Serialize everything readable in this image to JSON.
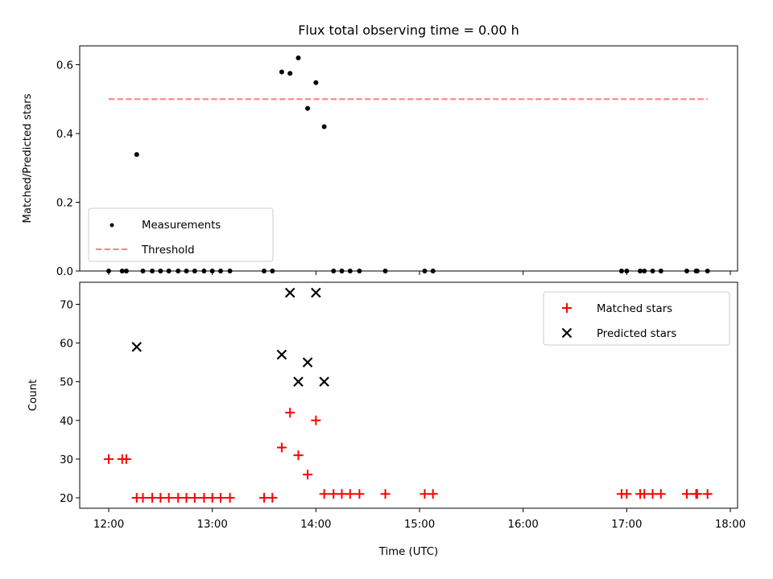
{
  "chart_data": [
    {
      "type": "scatter",
      "title": "Flux total observing time = 0.00 h",
      "xlabel": "",
      "ylabel": "Matched/Predicted stars",
      "xlim": [
        11.72,
        18.07
      ],
      "ylim": [
        0.0,
        0.655
      ],
      "yticks": [
        0.0,
        0.2,
        0.4,
        0.6
      ],
      "ytick_labels": [
        "0.0",
        "0.2",
        "0.4",
        "0.6"
      ],
      "grid": false,
      "legend_position": "lower-left",
      "series": [
        {
          "name": "Measurements",
          "marker": "dot",
          "color": "#000000",
          "x": [
            12.0,
            12.13,
            12.17,
            12.27,
            12.33,
            12.42,
            12.5,
            12.58,
            12.67,
            12.75,
            12.83,
            12.92,
            13.0,
            13.08,
            13.17,
            13.5,
            13.58,
            13.67,
            13.75,
            13.83,
            13.92,
            14.0,
            14.08,
            14.17,
            14.25,
            14.33,
            14.42,
            14.67,
            15.05,
            15.13,
            16.95,
            17.0,
            17.13,
            17.17,
            17.25,
            17.33,
            17.58,
            17.67,
            17.68,
            17.78
          ],
          "y": [
            0.0,
            0.0,
            0.0,
            0.339,
            0.0,
            0.0,
            0.0,
            0.0,
            0.0,
            0.0,
            0.0,
            0.0,
            0.0,
            0.0,
            0.0,
            0.0,
            0.0,
            0.579,
            0.575,
            0.62,
            0.473,
            0.548,
            0.42,
            0.0,
            0.0,
            0.0,
            0.0,
            0.0,
            0.0,
            0.0,
            0.0,
            0.0,
            0.0,
            0.0,
            0.0,
            0.0,
            0.0,
            0.0,
            0.0,
            0.0
          ]
        },
        {
          "name": "Threshold",
          "marker": "dashed-line",
          "color": "#ff7f7f",
          "x": [
            12.0,
            17.78
          ],
          "y": [
            0.5,
            0.5
          ]
        }
      ]
    },
    {
      "type": "scatter",
      "title": "",
      "xlabel": "Time (UTC)",
      "ylabel": "Count",
      "xlim": [
        11.72,
        18.07
      ],
      "ylim": [
        17.3,
        75.7
      ],
      "yticks": [
        20,
        30,
        40,
        50,
        60,
        70
      ],
      "ytick_labels": [
        "20",
        "30",
        "40",
        "50",
        "60",
        "70"
      ],
      "xticks": [
        12,
        13,
        14,
        15,
        16,
        17,
        18
      ],
      "xtick_labels": [
        "12:00",
        "13:00",
        "14:00",
        "15:00",
        "16:00",
        "17:00",
        "18:00"
      ],
      "grid": false,
      "legend_position": "upper-right",
      "series": [
        {
          "name": "Matched stars",
          "marker": "plus",
          "color": "#ff0000",
          "x": [
            12.0,
            12.13,
            12.17,
            12.27,
            12.33,
            12.42,
            12.5,
            12.58,
            12.67,
            12.75,
            12.83,
            12.92,
            13.0,
            13.08,
            13.17,
            13.5,
            13.58,
            13.67,
            13.75,
            13.83,
            13.92,
            14.0,
            14.08,
            14.17,
            14.25,
            14.33,
            14.42,
            14.67,
            15.05,
            15.13,
            16.95,
            17.0,
            17.13,
            17.17,
            17.25,
            17.33,
            17.58,
            17.67,
            17.68,
            17.78
          ],
          "y": [
            30,
            30,
            30,
            20,
            20,
            20,
            20,
            20,
            20,
            20,
            20,
            20,
            20,
            20,
            20,
            20,
            20,
            33,
            42,
            31,
            26,
            40,
            21,
            21,
            21,
            21,
            21,
            21,
            21,
            21,
            21,
            21,
            21,
            21,
            21,
            21,
            21,
            21,
            21,
            21
          ]
        },
        {
          "name": "Predicted stars",
          "marker": "x",
          "color": "#000000",
          "x": [
            12.27,
            13.67,
            13.75,
            13.83,
            13.92,
            14.0,
            14.08
          ],
          "y": [
            59,
            57,
            73,
            50,
            55,
            73,
            50
          ]
        }
      ]
    }
  ]
}
